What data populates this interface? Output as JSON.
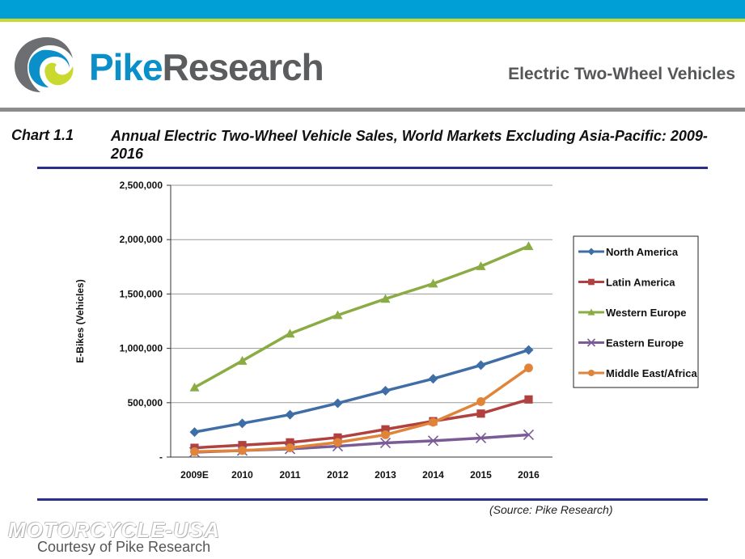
{
  "header": {
    "logo_part1": "Pike",
    "logo_part2": "Research",
    "title": "Electric Two-Wheel Vehicles"
  },
  "chart_heading": {
    "label": "Chart 1.1",
    "title": "Annual Electric Two-Wheel Vehicle Sales, World Markets Excluding Asia-Pacific: 2009-2016"
  },
  "footer": {
    "source": "(Source: Pike Research)",
    "watermark": "MOTORCYCLE-USA",
    "courtesy": "Courtesy of Pike Research"
  },
  "colors": {
    "top_bar": "#009fd6",
    "top_line": "#c9d92f",
    "rule": "#2b2f8a"
  },
  "chart_data": {
    "type": "line",
    "title": "Annual Electric Two-Wheel Vehicle Sales, World Markets Excluding Asia-Pacific: 2009-2016",
    "xlabel": "",
    "ylabel": "E-Bikes (Vehicles)",
    "ylim": [
      0,
      2500000
    ],
    "yticks": [
      0,
      500000,
      1000000,
      1500000,
      2000000,
      2500000
    ],
    "ytick_labels": [
      "-",
      "500,000",
      "1,000,000",
      "1,500,000",
      "2,000,000",
      "2,500,000"
    ],
    "categories": [
      "2009E",
      "2010",
      "2011",
      "2012",
      "2013",
      "2014",
      "2015",
      "2016"
    ],
    "grid": "horizontal",
    "legend_position": "right",
    "series": [
      {
        "name": "North America",
        "color": "#3f6ea6",
        "marker": "diamond",
        "values": [
          230000,
          310000,
          390000,
          495000,
          610000,
          720000,
          845000,
          985000
        ]
      },
      {
        "name": "Latin America",
        "color": "#b0413e",
        "marker": "square",
        "values": [
          85000,
          110000,
          135000,
          180000,
          255000,
          330000,
          400000,
          530000
        ]
      },
      {
        "name": "Western Europe",
        "color": "#8bac44",
        "marker": "triangle",
        "values": [
          640000,
          885000,
          1135000,
          1305000,
          1455000,
          1595000,
          1755000,
          1940000
        ]
      },
      {
        "name": "Eastern Europe",
        "color": "#7a5b96",
        "marker": "x",
        "values": [
          45000,
          60000,
          75000,
          100000,
          130000,
          150000,
          175000,
          205000
        ]
      },
      {
        "name": "Middle East/Africa",
        "color": "#e0843a",
        "marker": "circle",
        "values": [
          50000,
          60000,
          85000,
          135000,
          205000,
          320000,
          510000,
          820000
        ]
      }
    ]
  }
}
